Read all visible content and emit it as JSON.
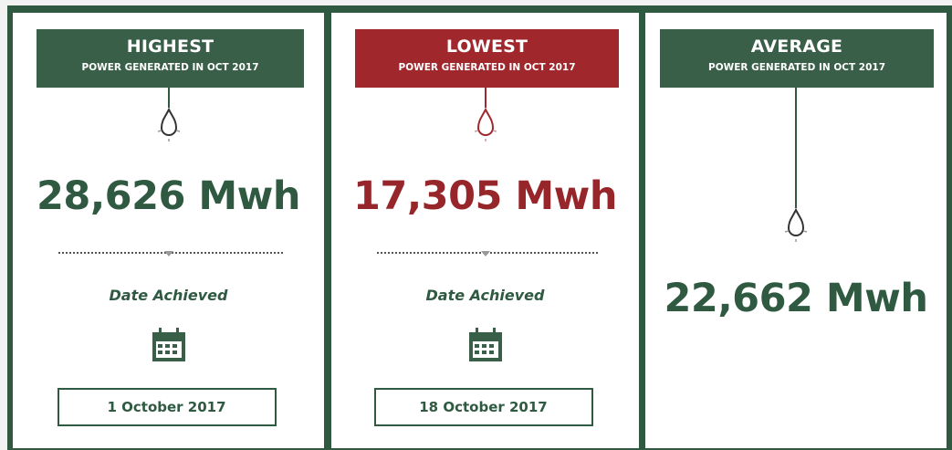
{
  "cards": [
    {
      "title": "HIGHEST",
      "subtitle": "POWER GENERATED IN OCT 2017",
      "value": "28,626 Mwh",
      "date_label": "Date Achieved",
      "date": "1 October 2017"
    },
    {
      "title": "LOWEST",
      "subtitle": "POWER GENERATED IN OCT 2017",
      "value": "17,305 Mwh",
      "date_label": "Date Achieved",
      "date": "18 October 2017"
    },
    {
      "title": "AVERAGE",
      "subtitle": "POWER GENERATED IN OCT 2017",
      "value": "22,662 Mwh"
    }
  ]
}
